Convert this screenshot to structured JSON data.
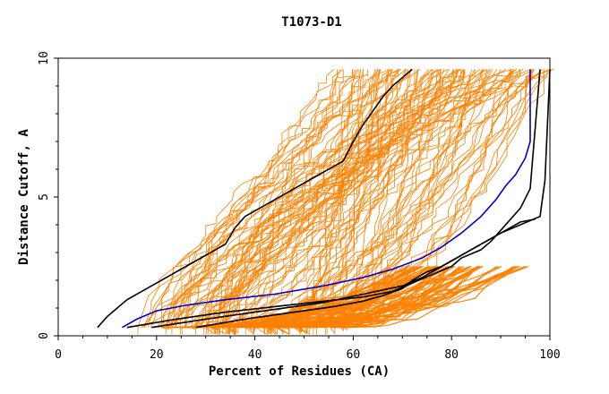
{
  "chart_data": {
    "type": "line",
    "title": "T1073-D1",
    "xlabel": "Percent of Residues (CA)",
    "ylabel": "Distance Cutoff, A",
    "xlim": [
      0,
      100
    ],
    "ylim": [
      0,
      10
    ],
    "x_ticks": [
      0,
      20,
      40,
      60,
      80,
      100
    ],
    "y_ticks": [
      0,
      5,
      10
    ],
    "grid": false,
    "legend": "none",
    "colors": {
      "background_models": "#ff8000",
      "highlight_black": "#000000",
      "highlight_blue": "#0000cc"
    },
    "highlighted_series": [
      {
        "color": "#000000",
        "x": [
          8,
          10,
          14,
          20,
          26,
          30,
          34,
          36,
          38,
          42,
          46,
          50,
          54,
          58,
          60,
          62,
          64,
          66,
          68,
          70,
          72
        ],
        "y": [
          0.3,
          0.7,
          1.3,
          1.9,
          2.5,
          2.9,
          3.3,
          3.9,
          4.3,
          4.7,
          5.1,
          5.5,
          5.9,
          6.3,
          7.0,
          7.6,
          8.1,
          8.6,
          9.0,
          9.3,
          9.6
        ]
      },
      {
        "color": "#0000cc",
        "x": [
          13,
          16,
          20,
          26,
          34,
          44,
          54,
          62,
          68,
          74,
          78,
          82,
          86,
          89,
          91,
          93,
          95,
          96,
          96
        ],
        "y": [
          0.3,
          0.6,
          0.9,
          1.1,
          1.3,
          1.5,
          1.8,
          2.1,
          2.4,
          2.8,
          3.2,
          3.7,
          4.3,
          4.9,
          5.4,
          5.8,
          6.4,
          7.0,
          9.6
        ]
      },
      {
        "color": "#000000",
        "x": [
          14,
          24,
          34,
          44,
          54,
          62,
          68,
          72,
          76,
          80,
          82,
          86,
          88,
          90,
          92,
          94,
          96,
          98
        ],
        "y": [
          0.3,
          0.6,
          0.85,
          1.05,
          1.25,
          1.4,
          1.6,
          1.9,
          2.2,
          2.5,
          2.8,
          3.1,
          3.4,
          3.8,
          4.2,
          4.6,
          5.3,
          9.6
        ]
      },
      {
        "color": "#000000",
        "x": [
          19,
          30,
          42,
          54,
          62,
          70,
          74,
          78,
          82,
          86,
          90,
          94,
          98,
          99,
          100
        ],
        "y": [
          0.3,
          0.6,
          0.9,
          1.2,
          1.5,
          1.8,
          2.1,
          2.5,
          2.9,
          3.3,
          3.7,
          4.0,
          4.3,
          5.6,
          9.6
        ]
      },
      {
        "color": "#000000",
        "x": [
          28,
          38,
          48,
          56,
          62,
          66,
          70,
          72,
          75,
          78,
          82,
          86,
          90,
          94,
          97
        ],
        "y": [
          0.3,
          0.6,
          0.85,
          1.05,
          1.25,
          1.45,
          1.7,
          2.0,
          2.3,
          2.5,
          2.9,
          3.3,
          3.7,
          4.1,
          4.2
        ]
      }
    ]
  }
}
